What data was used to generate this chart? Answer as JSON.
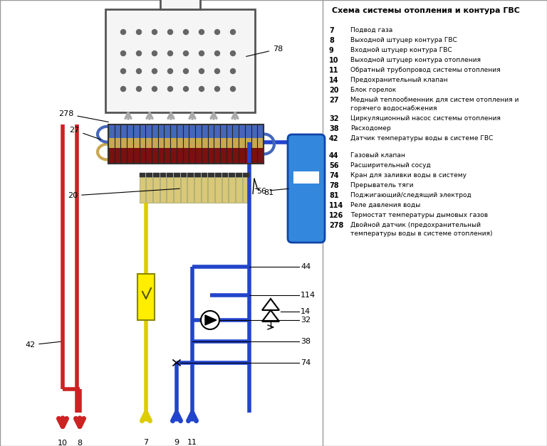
{
  "title": "Схема системы отопления и контура ГВС",
  "bg_color": "#ffffff",
  "legend_items_group1": [
    {
      "num": "7",
      "text": "Подвод газа"
    },
    {
      "num": "8",
      "text": "Выходной штуцер контура ГВС"
    },
    {
      "num": "9",
      "text": "Входной штуцер контура ГВС"
    },
    {
      "num": "10",
      "text": "Выходной штуцер контура отопления"
    },
    {
      "num": "11",
      "text": "Обратный трубопровод системы отопления"
    },
    {
      "num": "14",
      "text": "Предохранительный клапан"
    },
    {
      "num": "20",
      "text": "Блок горелок"
    },
    {
      "num": "27",
      "text": "Медный теплообменник для систем отопления и горячего водоснабжения"
    },
    {
      "num": "32",
      "text": "Циркуляционный насос системы отопления"
    },
    {
      "num": "38",
      "text": "Расходомер"
    },
    {
      "num": "42",
      "text": "Датчик температуры воды в системе ГВС"
    }
  ],
  "legend_items_group2": [
    {
      "num": "44",
      "text": "Газовый клапан"
    },
    {
      "num": "56",
      "text": "Расширительный сосуд"
    },
    {
      "num": "74",
      "text": "Кран для заливки воды в систему"
    },
    {
      "num": "78",
      "text": "Прерыватель тяги"
    },
    {
      "num": "81",
      "text": "Поджигающий/следящий электрод"
    },
    {
      "num": "114",
      "text": "Реле давления воды"
    },
    {
      "num": "126",
      "text": "Термостат температуры дымовых газов"
    },
    {
      "num": "278",
      "text": "Двойной датчик (предохранительный температуры воды в системе отопления)"
    }
  ],
  "red_color": "#cc2222",
  "blue_color": "#2244cc",
  "yellow_color": "#ddcc00",
  "pipe_lw": 4
}
